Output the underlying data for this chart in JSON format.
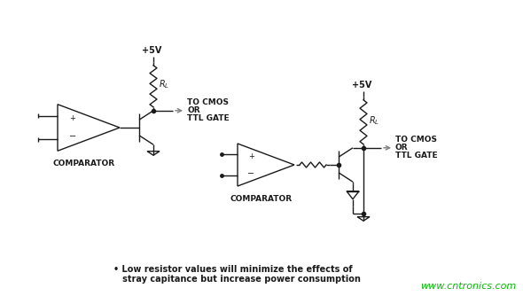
{
  "bg_color": "#ffffff",
  "line_color": "#1a1a1a",
  "text_color": "#1a1a1a",
  "watermark_color": "#00bb00",
  "watermark": "www.cntronics.com",
  "caption_line1": "• Low resistor values will minimize the effects of",
  "caption_line2": "   stray capitance but increase power consumption",
  "label_comparator1": "COMPARATOR",
  "label_comparator2": "COMPARATOR",
  "label_vcc1": "+5V",
  "label_vcc2": "+5V",
  "label_tocmos1": "TO CMOS",
  "label_or1": "OR",
  "label_ttlgate1": "TTL GATE",
  "label_tocmos2": "TO CMOS",
  "label_or2": "OR",
  "label_ttlgate2": "TTL GATE"
}
